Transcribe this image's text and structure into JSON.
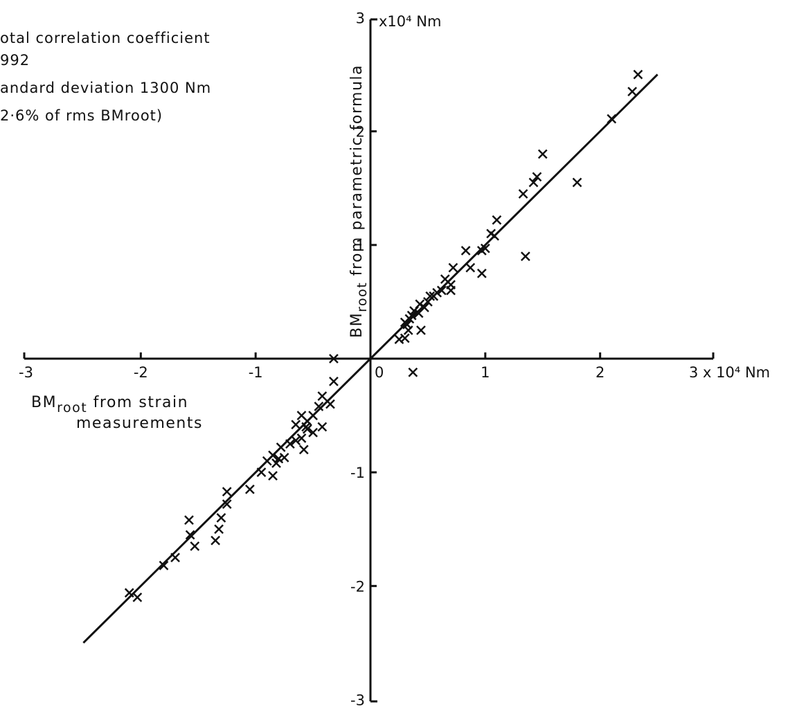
{
  "chart_data": {
    "type": "scatter",
    "annotations": [
      "otal  correlation  coefficient",
      "992",
      "andard  deviation 1300  Nm",
      "2·6%  of  rms  BMroot)"
    ],
    "xlabel_line1_main": "BM",
    "xlabel_line1_sub": "root",
    "xlabel_line1_rest": " from  strain",
    "xlabel_line2": "measurements",
    "ylabel_main": "BM",
    "ylabel_sub": "root",
    "ylabel_rest": " from  parametric  formula",
    "x_unit_label": "3 x 10⁴ Nm",
    "y_unit_label": "x10⁴ Nm",
    "xlim": [
      -3,
      3
    ],
    "ylim": [
      -3,
      3
    ],
    "x_ticks": [
      {
        "value": -3,
        "label": "-3"
      },
      {
        "value": -2,
        "label": "-2"
      },
      {
        "value": -1,
        "label": "-1"
      },
      {
        "value": 0,
        "label": "0"
      },
      {
        "value": 1,
        "label": "1"
      },
      {
        "value": 2,
        "label": "2"
      }
    ],
    "y_ticks": [
      {
        "value": -3,
        "label": "-3"
      },
      {
        "value": -2,
        "label": "-2"
      },
      {
        "value": -1,
        "label": "-1"
      },
      {
        "value": 1,
        "label": "1"
      },
      {
        "value": 2,
        "label": "2"
      },
      {
        "value": 3,
        "label": "3"
      }
    ],
    "fit_line": {
      "x": [
        -2.5,
        2.5
      ],
      "y": [
        -2.5,
        2.5
      ]
    },
    "points": [
      {
        "x": 2.33,
        "y": 2.5
      },
      {
        "x": 2.28,
        "y": 2.35
      },
      {
        "x": 2.1,
        "y": 2.11
      },
      {
        "x": 1.5,
        "y": 1.8
      },
      {
        "x": 1.8,
        "y": 1.55
      },
      {
        "x": 1.45,
        "y": 1.6
      },
      {
        "x": 1.42,
        "y": 1.55
      },
      {
        "x": 1.33,
        "y": 1.45
      },
      {
        "x": 1.1,
        "y": 1.22
      },
      {
        "x": 1.08,
        "y": 1.08
      },
      {
        "x": 1.05,
        "y": 1.1
      },
      {
        "x": 1.35,
        "y": 0.9
      },
      {
        "x": 1.0,
        "y": 0.97
      },
      {
        "x": 0.97,
        "y": 0.95
      },
      {
        "x": 0.83,
        "y": 0.95
      },
      {
        "x": 0.87,
        "y": 0.8
      },
      {
        "x": 0.97,
        "y": 0.75
      },
      {
        "x": 0.72,
        "y": 0.8
      },
      {
        "x": 0.7,
        "y": 0.65
      },
      {
        "x": 0.65,
        "y": 0.7
      },
      {
        "x": 0.7,
        "y": 0.6
      },
      {
        "x": 0.62,
        "y": 0.6
      },
      {
        "x": 0.58,
        "y": 0.58
      },
      {
        "x": 0.55,
        "y": 0.55
      },
      {
        "x": 0.52,
        "y": 0.55
      },
      {
        "x": 0.5,
        "y": 0.5
      },
      {
        "x": 0.47,
        "y": 0.45
      },
      {
        "x": 0.43,
        "y": 0.48
      },
      {
        "x": 0.42,
        "y": 0.4
      },
      {
        "x": 0.38,
        "y": 0.42
      },
      {
        "x": 0.36,
        "y": 0.38
      },
      {
        "x": 0.34,
        "y": 0.35
      },
      {
        "x": 0.32,
        "y": 0.3
      },
      {
        "x": 0.3,
        "y": 0.32
      },
      {
        "x": 0.33,
        "y": 0.25
      },
      {
        "x": 0.44,
        "y": 0.25
      },
      {
        "x": 0.3,
        "y": 0.18
      },
      {
        "x": 0.25,
        "y": 0.17
      },
      {
        "x": 0.37,
        "y": -0.12
      },
      {
        "x": -0.32,
        "y": 0.0
      },
      {
        "x": -0.32,
        "y": -0.2
      },
      {
        "x": -0.42,
        "y": -0.33
      },
      {
        "x": -0.35,
        "y": -0.4
      },
      {
        "x": -0.45,
        "y": -0.42
      },
      {
        "x": -0.5,
        "y": -0.5
      },
      {
        "x": -0.55,
        "y": -0.55
      },
      {
        "x": -0.6,
        "y": -0.5
      },
      {
        "x": -0.65,
        "y": -0.58
      },
      {
        "x": -0.55,
        "y": -0.62
      },
      {
        "x": -0.5,
        "y": -0.65
      },
      {
        "x": -0.42,
        "y": -0.6
      },
      {
        "x": -0.6,
        "y": -0.7
      },
      {
        "x": -0.65,
        "y": -0.72
      },
      {
        "x": -0.7,
        "y": -0.75
      },
      {
        "x": -0.78,
        "y": -0.78
      },
      {
        "x": -0.58,
        "y": -0.8
      },
      {
        "x": -0.56,
        "y": -0.6
      },
      {
        "x": -0.75,
        "y": -0.87
      },
      {
        "x": -0.8,
        "y": -0.88
      },
      {
        "x": -0.85,
        "y": -0.85
      },
      {
        "x": -0.9,
        "y": -0.9
      },
      {
        "x": -0.82,
        "y": -0.92
      },
      {
        "x": -0.85,
        "y": -1.03
      },
      {
        "x": -0.95,
        "y": -1.0
      },
      {
        "x": -1.05,
        "y": -1.15
      },
      {
        "x": -1.25,
        "y": -1.17
      },
      {
        "x": -1.25,
        "y": -1.28
      },
      {
        "x": -1.58,
        "y": -1.42
      },
      {
        "x": -1.3,
        "y": -1.4
      },
      {
        "x": -1.32,
        "y": -1.5
      },
      {
        "x": -1.57,
        "y": -1.55
      },
      {
        "x": -1.35,
        "y": -1.6
      },
      {
        "x": -1.53,
        "y": -1.65
      },
      {
        "x": -1.7,
        "y": -1.75
      },
      {
        "x": -1.8,
        "y": -1.82
      },
      {
        "x": -2.1,
        "y": -2.06
      },
      {
        "x": -2.03,
        "y": -2.1
      }
    ]
  }
}
